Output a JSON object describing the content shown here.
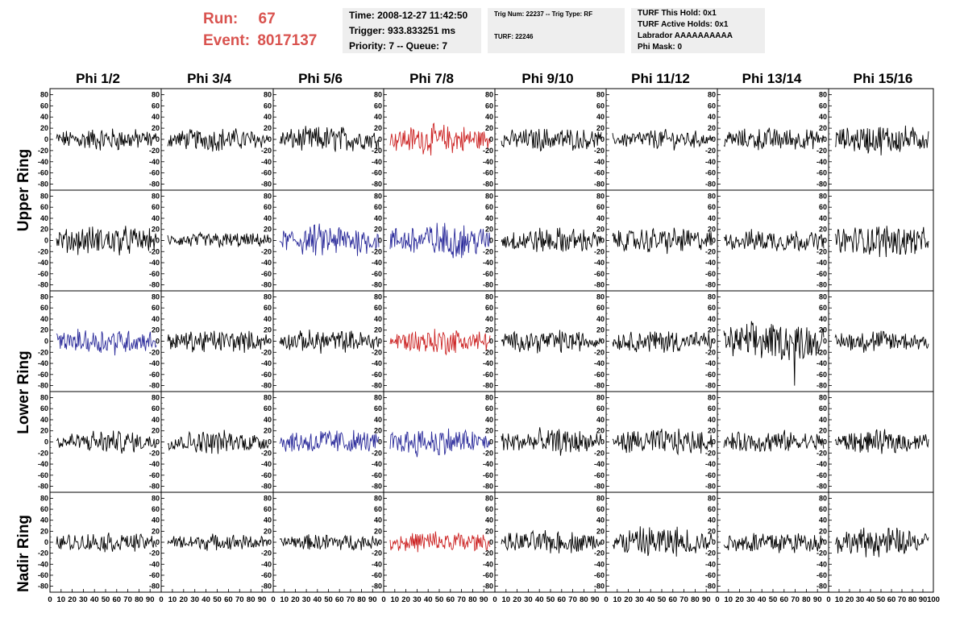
{
  "header": {
    "run_label": "Run:",
    "run_value": "67",
    "event_label": "Event:",
    "event_value": "8017137",
    "time": "Time: 2008-12-27 11:42:50",
    "trigger": "Trigger: 933.833251 ms",
    "priority": "Priority: 7 -- Queue: 7",
    "trig_num": "Trig Num: 22237 -- Trig Type: RF",
    "turf": "TURF: 22246",
    "turf_hold": "TURF This Hold: 0x1",
    "turf_active": "TURF Active Holds: 0x1",
    "labrador": "Labrador AAAAAAAAAA",
    "phi_mask": "Phi Mask: 0"
  },
  "colors": {
    "normal": "#000000",
    "red": "#cc2222",
    "blue": "#2a2a9a",
    "accent": "#d9534f"
  },
  "chart_data": {
    "type": "line",
    "columns": [
      "Phi 1/2",
      "Phi 3/4",
      "Phi 5/6",
      "Phi 7/8",
      "Phi 9/10",
      "Phi 11/12",
      "Phi 13/14",
      "Phi 15/16"
    ],
    "ring_labels": [
      "Upper Ring",
      "Lower Ring",
      "Nadir Ring"
    ],
    "ylim": [
      -85,
      85
    ],
    "yticks": [
      80,
      60,
      40,
      20,
      0,
      -20,
      -40,
      -60,
      -80
    ],
    "xlim": [
      0,
      100
    ],
    "xticks": [
      0,
      10,
      20,
      30,
      40,
      50,
      60,
      70,
      80,
      90,
      100
    ],
    "panel_colors": [
      [
        "normal",
        "normal",
        "normal",
        "red",
        "normal",
        "normal",
        "normal",
        "normal"
      ],
      [
        "normal",
        "normal",
        "blue",
        "blue",
        "normal",
        "normal",
        "normal",
        "normal"
      ],
      [
        "blue",
        "normal",
        "normal",
        "red",
        "normal",
        "normal",
        "normal",
        "normal"
      ],
      [
        "normal",
        "normal",
        "blue",
        "blue",
        "normal",
        "normal",
        "normal",
        "normal"
      ],
      [
        "normal",
        "normal",
        "normal",
        "red",
        "normal",
        "normal",
        "normal",
        "normal"
      ]
    ],
    "panel_amplitudes": [
      [
        14,
        14,
        16,
        18,
        14,
        12,
        14,
        18
      ],
      [
        18,
        10,
        20,
        22,
        16,
        16,
        14,
        20
      ],
      [
        16,
        14,
        14,
        16,
        14,
        14,
        24,
        14
      ],
      [
        14,
        14,
        16,
        18,
        16,
        16,
        14,
        14
      ],
      [
        12,
        10,
        10,
        14,
        14,
        20,
        14,
        18
      ]
    ]
  }
}
